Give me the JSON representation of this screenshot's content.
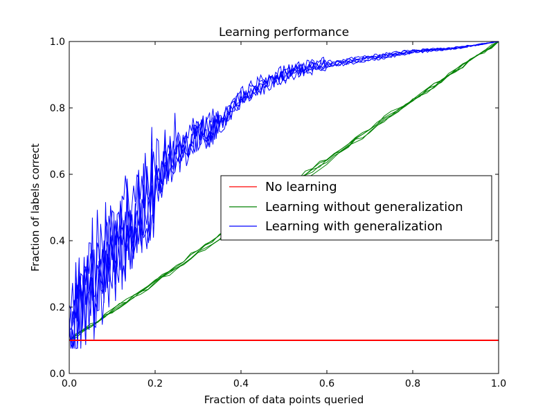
{
  "chart_data": {
    "type": "line",
    "title": "Learning performance",
    "xlabel": "Fraction of data points queried",
    "ylabel": "Fraction of labels correct",
    "xlim": [
      0.0,
      1.0
    ],
    "ylim": [
      0.0,
      1.0
    ],
    "xticks": [
      0.0,
      0.2,
      0.4,
      0.6,
      0.8,
      1.0
    ],
    "yticks": [
      0.0,
      0.2,
      0.4,
      0.6,
      0.8,
      1.0
    ],
    "xtick_labels": [
      "0.0",
      "0.2",
      "0.4",
      "0.6",
      "0.8",
      "1.0"
    ],
    "ytick_labels": [
      "0.0",
      "0.2",
      "0.4",
      "0.6",
      "0.8",
      "1.0"
    ],
    "legend_position": "center-right",
    "series": [
      {
        "name": "No learning",
        "color": "#ff0000",
        "runs": 1,
        "x": [
          0.0,
          1.0
        ],
        "y": [
          0.1,
          0.1
        ]
      },
      {
        "name": "Learning without generalization",
        "color": "#008000",
        "runs": 5,
        "x": [
          0.0,
          0.25,
          0.5,
          0.75,
          1.0
        ],
        "y": [
          0.1,
          0.32,
          0.55,
          0.78,
          1.0
        ]
      },
      {
        "name": "Learning with generalization",
        "color": "#0000ff",
        "runs": 6,
        "x": [
          0.0,
          0.01,
          0.02,
          0.03,
          0.05,
          0.07,
          0.1,
          0.12,
          0.15,
          0.18,
          0.2,
          0.22,
          0.25,
          0.3,
          0.35,
          0.4,
          0.45,
          0.5,
          0.55,
          0.6,
          0.7,
          0.8,
          0.9,
          1.0
        ],
        "y": [
          0.1,
          0.2,
          0.17,
          0.2,
          0.25,
          0.3,
          0.36,
          0.4,
          0.45,
          0.5,
          0.56,
          0.6,
          0.66,
          0.72,
          0.75,
          0.83,
          0.87,
          0.9,
          0.92,
          0.93,
          0.95,
          0.97,
          0.98,
          1.0
        ]
      }
    ]
  }
}
